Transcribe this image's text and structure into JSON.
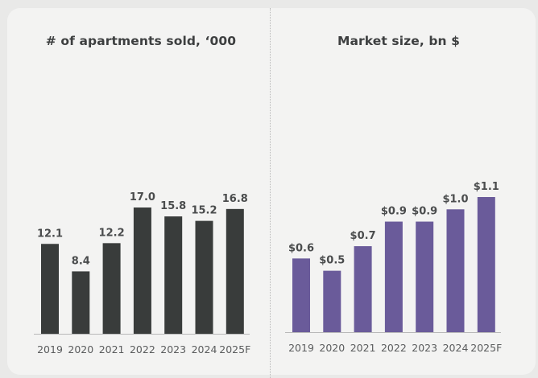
{
  "chart_data": [
    {
      "type": "bar",
      "title": "# of apartments sold, ‘000",
      "categories": [
        "2019",
        "2020",
        "2021",
        "2022",
        "2023",
        "2024",
        "2025F"
      ],
      "values": [
        12.1,
        8.4,
        12.2,
        17.0,
        15.8,
        15.2,
        16.8
      ],
      "value_labels": [
        "12.1",
        "8.4",
        "12.2",
        "17.0",
        "15.8",
        "15.2",
        "16.8"
      ],
      "xlabel": "",
      "ylabel": "",
      "ylim": [
        0,
        17.0
      ],
      "grid": false,
      "color": "#393c3b"
    },
    {
      "type": "bar",
      "title": "Market size, bn $",
      "categories": [
        "2019",
        "2020",
        "2021",
        "2022",
        "2023",
        "2024",
        "2025F"
      ],
      "values": [
        0.6,
        0.5,
        0.7,
        0.9,
        0.9,
        1.0,
        1.1
      ],
      "value_labels": [
        "$0.6",
        "$0.5",
        "$0.7",
        "$0.9",
        "$0.9",
        "$1.0",
        "$1.1"
      ],
      "xlabel": "",
      "ylabel": "",
      "ylim": [
        0,
        1.1
      ],
      "grid": false,
      "color": "#6a5b9a"
    }
  ]
}
